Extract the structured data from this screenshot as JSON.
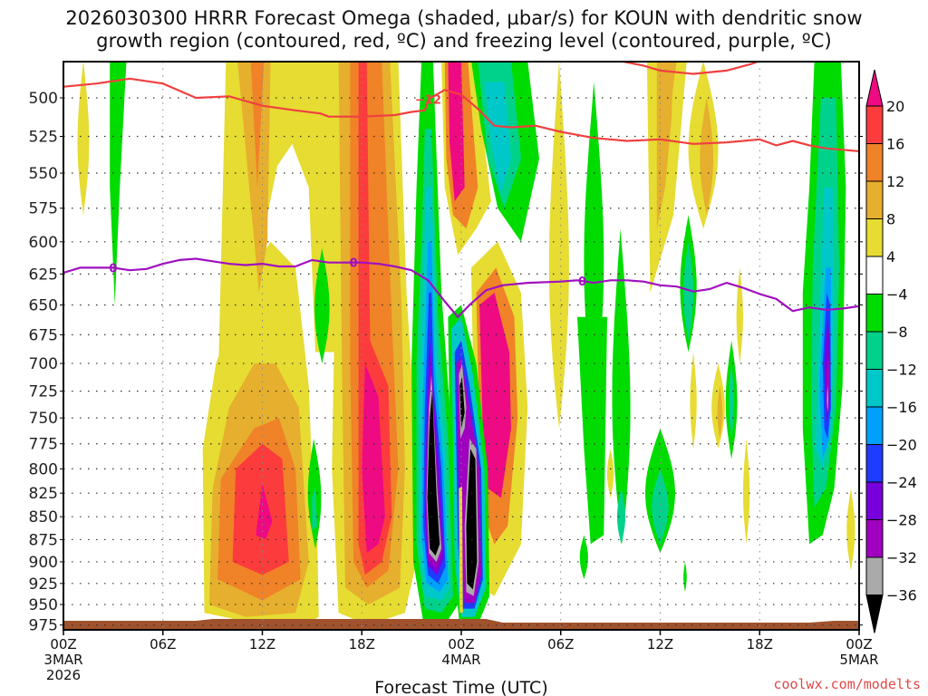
{
  "chart_data": {
    "type": "heatmap",
    "title_lines": [
      "2026030300 HRRR Forecast Omega (shaded, µbar/s) for KOUN with dendritic snow",
      "growth region (contoured, red, ºC) and freezing level (contoured, purple, ºC)"
    ],
    "xlabel": "Forecast Time (UTC)",
    "ylabel": "",
    "x_range_hours": [
      0,
      48
    ],
    "y_range_hPa": [
      477,
      985
    ],
    "y_scale": "log",
    "y_inverted": true,
    "y_ticks": [
      500,
      525,
      550,
      575,
      600,
      625,
      650,
      675,
      700,
      725,
      750,
      775,
      800,
      825,
      850,
      875,
      900,
      925,
      950,
      975
    ],
    "x_ticks": [
      {
        "hour": 0,
        "lines": [
          "00Z",
          "3MAR",
          "2026"
        ]
      },
      {
        "hour": 6,
        "lines": [
          "06Z"
        ]
      },
      {
        "hour": 12,
        "lines": [
          "12Z"
        ]
      },
      {
        "hour": 18,
        "lines": [
          "18Z"
        ]
      },
      {
        "hour": 24,
        "lines": [
          "00Z",
          "4MAR"
        ]
      },
      {
        "hour": 30,
        "lines": [
          "06Z"
        ]
      },
      {
        "hour": 36,
        "lines": [
          "12Z"
        ]
      },
      {
        "hour": 42,
        "lines": [
          "18Z"
        ]
      },
      {
        "hour": 48,
        "lines": [
          "00Z",
          "5MAR"
        ]
      }
    ],
    "grid": true,
    "colorbar": {
      "placement": "right",
      "units": "µbar/s",
      "labels": [
        "20",
        "16",
        "12",
        "8",
        "4",
        "−4",
        "−8",
        "−12",
        "−16",
        "−20",
        "−24",
        "−28",
        "−32",
        "−36"
      ],
      "bins": [
        {
          "range": ">20",
          "color": "#ee0a82"
        },
        {
          "range": "16 to 20",
          "color": "#fc3c3c"
        },
        {
          "range": "12 to 16",
          "color": "#f08228"
        },
        {
          "range": "8 to 12",
          "color": "#e6af2d"
        },
        {
          "range": "4 to 8",
          "color": "#e6dc32"
        },
        {
          "range": "-4 to 4",
          "color": "#ffffff"
        },
        {
          "range": "-8 to -4",
          "color": "#00dc00"
        },
        {
          "range": "-12 to -8",
          "color": "#00d28c"
        },
        {
          "range": "-16 to -12",
          "color": "#00c8c8"
        },
        {
          "range": "-20 to -16",
          "color": "#00a0ff"
        },
        {
          "range": "-24 to -20",
          "color": "#1e3cff"
        },
        {
          "range": "-28 to -24",
          "color": "#7800dc"
        },
        {
          "range": "-32 to -28",
          "color": "#a000c0"
        },
        {
          "range": "-36 to -32",
          "color": "#aaaaaa"
        },
        {
          "range": "<-36",
          "color": "#000000"
        }
      ]
    },
    "contours": [
      {
        "name": "dendritic-growth -12C",
        "label": "−12",
        "color": "#f04040",
        "label_at_hour": 22.0,
        "points": [
          [
            0,
            493
          ],
          [
            2,
            491
          ],
          [
            4,
            488
          ],
          [
            6,
            491
          ],
          [
            8,
            500
          ],
          [
            10,
            499
          ],
          [
            12,
            505
          ],
          [
            14,
            508
          ],
          [
            15.5,
            510
          ],
          [
            16,
            512
          ],
          [
            18,
            512
          ],
          [
            20,
            511
          ],
          [
            21,
            509
          ],
          [
            21.8,
            508
          ],
          [
            22,
            501
          ],
          [
            23,
            495
          ],
          [
            24,
            498
          ],
          [
            25,
            507
          ],
          [
            26,
            518
          ],
          [
            27,
            519
          ],
          [
            28.5,
            518
          ],
          [
            30,
            522
          ],
          [
            32,
            526
          ],
          [
            34,
            528
          ],
          [
            36,
            527
          ],
          [
            38,
            530
          ],
          [
            40,
            529
          ],
          [
            42,
            527
          ],
          [
            43,
            531
          ],
          [
            44,
            528
          ],
          [
            45,
            531
          ],
          [
            46,
            533
          ],
          [
            48,
            535
          ]
        ]
      },
      {
        "name": "dendritic-growth -12C upper",
        "label": "",
        "color": "#f04040",
        "label_at_hour": null,
        "points": [
          [
            33.5,
            477
          ],
          [
            35,
            480
          ],
          [
            36,
            483
          ],
          [
            38,
            485
          ],
          [
            40,
            483
          ],
          [
            41.5,
            479
          ],
          [
            42,
            477
          ]
        ]
      },
      {
        "name": "freezing-level 0C",
        "label": "0",
        "color": "#a010c0",
        "label_at_hour": [
          3.0,
          17.5,
          31.3
        ],
        "points": [
          [
            0,
            624
          ],
          [
            1,
            620
          ],
          [
            3,
            620
          ],
          [
            4,
            622
          ],
          [
            5,
            621
          ],
          [
            6,
            617
          ],
          [
            7,
            614
          ],
          [
            8,
            613
          ],
          [
            9,
            615
          ],
          [
            10,
            617
          ],
          [
            11,
            618
          ],
          [
            12,
            617
          ],
          [
            13,
            619
          ],
          [
            14,
            619
          ],
          [
            15,
            614
          ],
          [
            16,
            616
          ],
          [
            17,
            616
          ],
          [
            18,
            616
          ],
          [
            19,
            617
          ],
          [
            20,
            619
          ],
          [
            21,
            622
          ],
          [
            22,
            630
          ],
          [
            23,
            647
          ],
          [
            23.8,
            660
          ],
          [
            24.5,
            650
          ],
          [
            25.5,
            638
          ],
          [
            26.5,
            634
          ],
          [
            28,
            632
          ],
          [
            30,
            631
          ],
          [
            31,
            630
          ],
          [
            32,
            632
          ],
          [
            33,
            630
          ],
          [
            34,
            630
          ],
          [
            35,
            631
          ],
          [
            36,
            634
          ],
          [
            37,
            635
          ],
          [
            38,
            639
          ],
          [
            39,
            637
          ],
          [
            40,
            632
          ],
          [
            41,
            636
          ],
          [
            42,
            641
          ],
          [
            43,
            645
          ],
          [
            44,
            655
          ],
          [
            45,
            652
          ],
          [
            46,
            654
          ],
          [
            47,
            653
          ],
          [
            48,
            651
          ]
        ]
      }
    ],
    "shaded_features": [
      {
        "desc": "descending updraft max (+20) near 12Z 3MAR 825-875 hPa",
        "max_value": ">20"
      },
      {
        "desc": "strong upward column (+20) 18Z 3MAR, 650-900 hPa",
        "max_value": ">20"
      },
      {
        "desc": "strong ascent core (<-36) ~22Z 3MAR 720-920 hPa",
        "min_value": "<-36"
      },
      {
        "desc": "strong ascent core (<-36) ~01Z 4MAR 760-950 hPa",
        "min_value": "<-36"
      },
      {
        "desc": "upward motion ~-28 around 22Z 4MAR 650-800 hPa",
        "min_value": "-32"
      }
    ]
  },
  "credit": "coolwx.com/modelts"
}
